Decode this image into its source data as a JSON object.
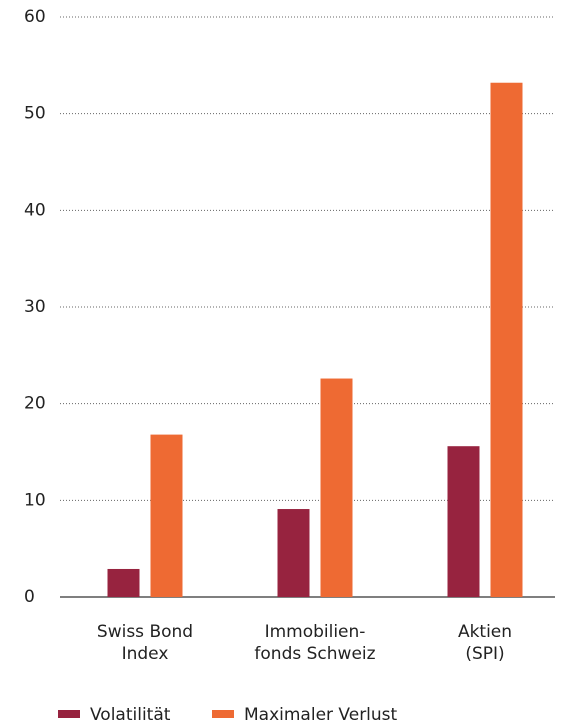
{
  "chart_data": {
    "type": "bar",
    "categories": [
      [
        "Swiss Bond",
        "Index"
      ],
      [
        "Immobilien-",
        "fonds Schweiz"
      ],
      [
        "Aktien",
        "(SPI)"
      ]
    ],
    "series": [
      {
        "name": "Volatilität",
        "color": "#97233f",
        "values": [
          2.9,
          9.1,
          15.6
        ]
      },
      {
        "name": "Maximaler Verlust",
        "color": "#ee6a33",
        "values": [
          16.8,
          22.6,
          53.2
        ]
      }
    ],
    "ylim": [
      0,
      60
    ],
    "yticks": [
      0,
      10,
      20,
      30,
      40,
      50,
      60
    ],
    "grid": true,
    "legend": "bottom"
  }
}
